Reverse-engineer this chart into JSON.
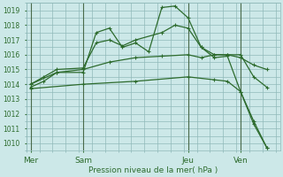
{
  "bg_color": "#cce8e8",
  "grid_color": "#90baba",
  "line_color": "#2d6b2d",
  "xlabel_text": "Pression niveau de la mer( hPa )",
  "ylim": [
    1009.5,
    1019.5
  ],
  "yticks": [
    1010,
    1011,
    1012,
    1013,
    1014,
    1015,
    1016,
    1017,
    1018,
    1019
  ],
  "xtick_labels": [
    "Mer",
    "Sam",
    "Jeu",
    "Ven"
  ],
  "xtick_positions": [
    0,
    24,
    72,
    96
  ],
  "xlim": [
    -2,
    114
  ],
  "vline_positions": [
    0,
    24,
    72,
    96
  ],
  "series": [
    {
      "x": [
        0,
        6,
        12,
        24,
        30,
        36,
        42,
        48,
        54,
        60,
        66,
        72,
        78,
        84,
        90,
        96,
        102,
        108
      ],
      "y": [
        1013.8,
        1014.2,
        1014.8,
        1014.8,
        1017.5,
        1017.8,
        1016.5,
        1016.8,
        1016.2,
        1019.2,
        1019.3,
        1018.5,
        1016.5,
        1015.8,
        1015.9,
        1013.5,
        1011.5,
        1009.7
      ]
    },
    {
      "x": [
        0,
        6,
        12,
        24,
        30,
        36,
        42,
        48,
        60,
        66,
        72,
        78,
        84,
        90,
        96,
        102,
        108
      ],
      "y": [
        1014.0,
        1014.5,
        1015.0,
        1015.1,
        1016.8,
        1017.0,
        1016.6,
        1017.0,
        1017.5,
        1018.0,
        1017.8,
        1016.5,
        1016.0,
        1016.0,
        1016.0,
        1014.5,
        1013.8
      ]
    },
    {
      "x": [
        0,
        12,
        24,
        36,
        48,
        60,
        72,
        78,
        84,
        90,
        96,
        102,
        108
      ],
      "y": [
        1014.0,
        1014.8,
        1015.0,
        1015.5,
        1015.8,
        1015.9,
        1016.0,
        1015.8,
        1016.0,
        1016.0,
        1015.8,
        1015.3,
        1015.0
      ]
    },
    {
      "x": [
        0,
        24,
        48,
        72,
        84,
        90,
        96,
        102,
        108
      ],
      "y": [
        1013.7,
        1014.0,
        1014.2,
        1014.5,
        1014.3,
        1014.2,
        1013.5,
        1011.3,
        1009.7
      ]
    }
  ]
}
